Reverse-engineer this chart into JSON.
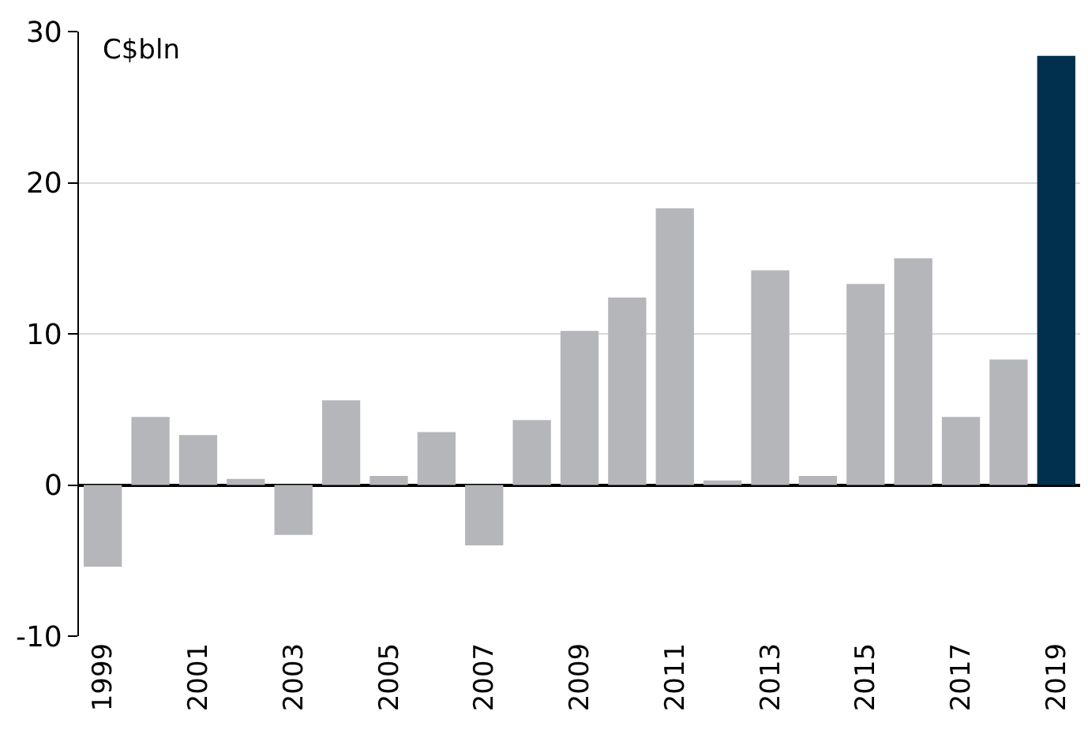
{
  "chart_data": {
    "type": "bar",
    "categories": [
      "1999",
      null,
      "2001",
      null,
      "2003",
      null,
      "2005",
      null,
      "2007",
      null,
      "2009",
      null,
      "2011",
      null,
      "2013",
      null,
      "2015",
      null,
      "2017",
      null,
      "2019"
    ],
    "values": [
      -5.4,
      4.5,
      3.3,
      0.4,
      -3.3,
      5.6,
      0.6,
      3.5,
      -4.0,
      4.3,
      10.2,
      12.4,
      18.3,
      0.3,
      14.2,
      0.6,
      13.3,
      15.0,
      4.5,
      8.3,
      28.4
    ],
    "colors": [
      "#b5b6b9",
      "#b5b6b9",
      "#b5b6b9",
      "#b5b6b9",
      "#b5b6b9",
      "#b5b6b9",
      "#b5b6b9",
      "#b5b6b9",
      "#b5b6b9",
      "#b5b6b9",
      "#b5b6b9",
      "#b5b6b9",
      "#b5b6b9",
      "#b5b6b9",
      "#b5b6b9",
      "#b5b6b9",
      "#b5b6b9",
      "#b5b6b9",
      "#b5b6b9",
      "#b5b6b9",
      "#00304d"
    ],
    "ylim": [
      -10,
      30
    ],
    "yticks": [
      -10,
      0,
      10,
      20,
      30
    ],
    "grid": "y",
    "legend": false,
    "annotations": [
      "C$bln"
    ]
  }
}
